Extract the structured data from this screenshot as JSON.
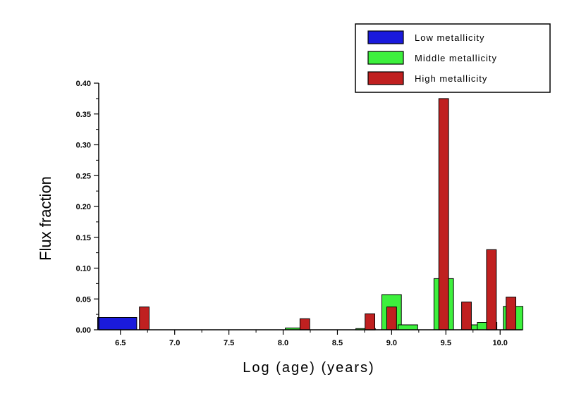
{
  "chart_data": {
    "type": "bar",
    "title": "",
    "xlabel": "Log (age) (years)",
    "ylabel": "Flux fraction",
    "xlim": [
      6.3,
      10.2
    ],
    "ylim": [
      0.0,
      0.4
    ],
    "x_ticks": [
      "6.5",
      "7.0",
      "7.5",
      "8.0",
      "8.5",
      "9.0",
      "9.5",
      "10.0"
    ],
    "y_ticks": [
      "0.00",
      "0.05",
      "0.10",
      "0.15",
      "0.20",
      "0.25",
      "0.30",
      "0.35",
      "0.40"
    ],
    "grid": false,
    "legend_position": "top-right",
    "series": [
      {
        "name": "Low metallicity",
        "color": "#1a1adc",
        "width": 0.36,
        "points": [
          {
            "x": 6.47,
            "y": 0.02
          }
        ]
      },
      {
        "name": "Middle metallicity",
        "color": "#3df03d",
        "width": 0.18,
        "points": [
          {
            "x": 8.11,
            "y": 0.003
          },
          {
            "x": 8.76,
            "y": 0.002
          },
          {
            "x": 9.0,
            "y": 0.057
          },
          {
            "x": 9.15,
            "y": 0.008
          },
          {
            "x": 9.48,
            "y": 0.083
          },
          {
            "x": 9.75,
            "y": 0.008
          },
          {
            "x": 9.88,
            "y": 0.012
          },
          {
            "x": 10.12,
            "y": 0.038
          }
        ]
      },
      {
        "name": "High metallicity",
        "color": "#c02020",
        "width": 0.09,
        "points": [
          {
            "x": 6.72,
            "y": 0.037
          },
          {
            "x": 8.2,
            "y": 0.018
          },
          {
            "x": 8.8,
            "y": 0.026
          },
          {
            "x": 9.0,
            "y": 0.037
          },
          {
            "x": 9.48,
            "y": 0.375
          },
          {
            "x": 9.69,
            "y": 0.045
          },
          {
            "x": 9.92,
            "y": 0.13
          },
          {
            "x": 10.1,
            "y": 0.053
          }
        ]
      }
    ]
  }
}
